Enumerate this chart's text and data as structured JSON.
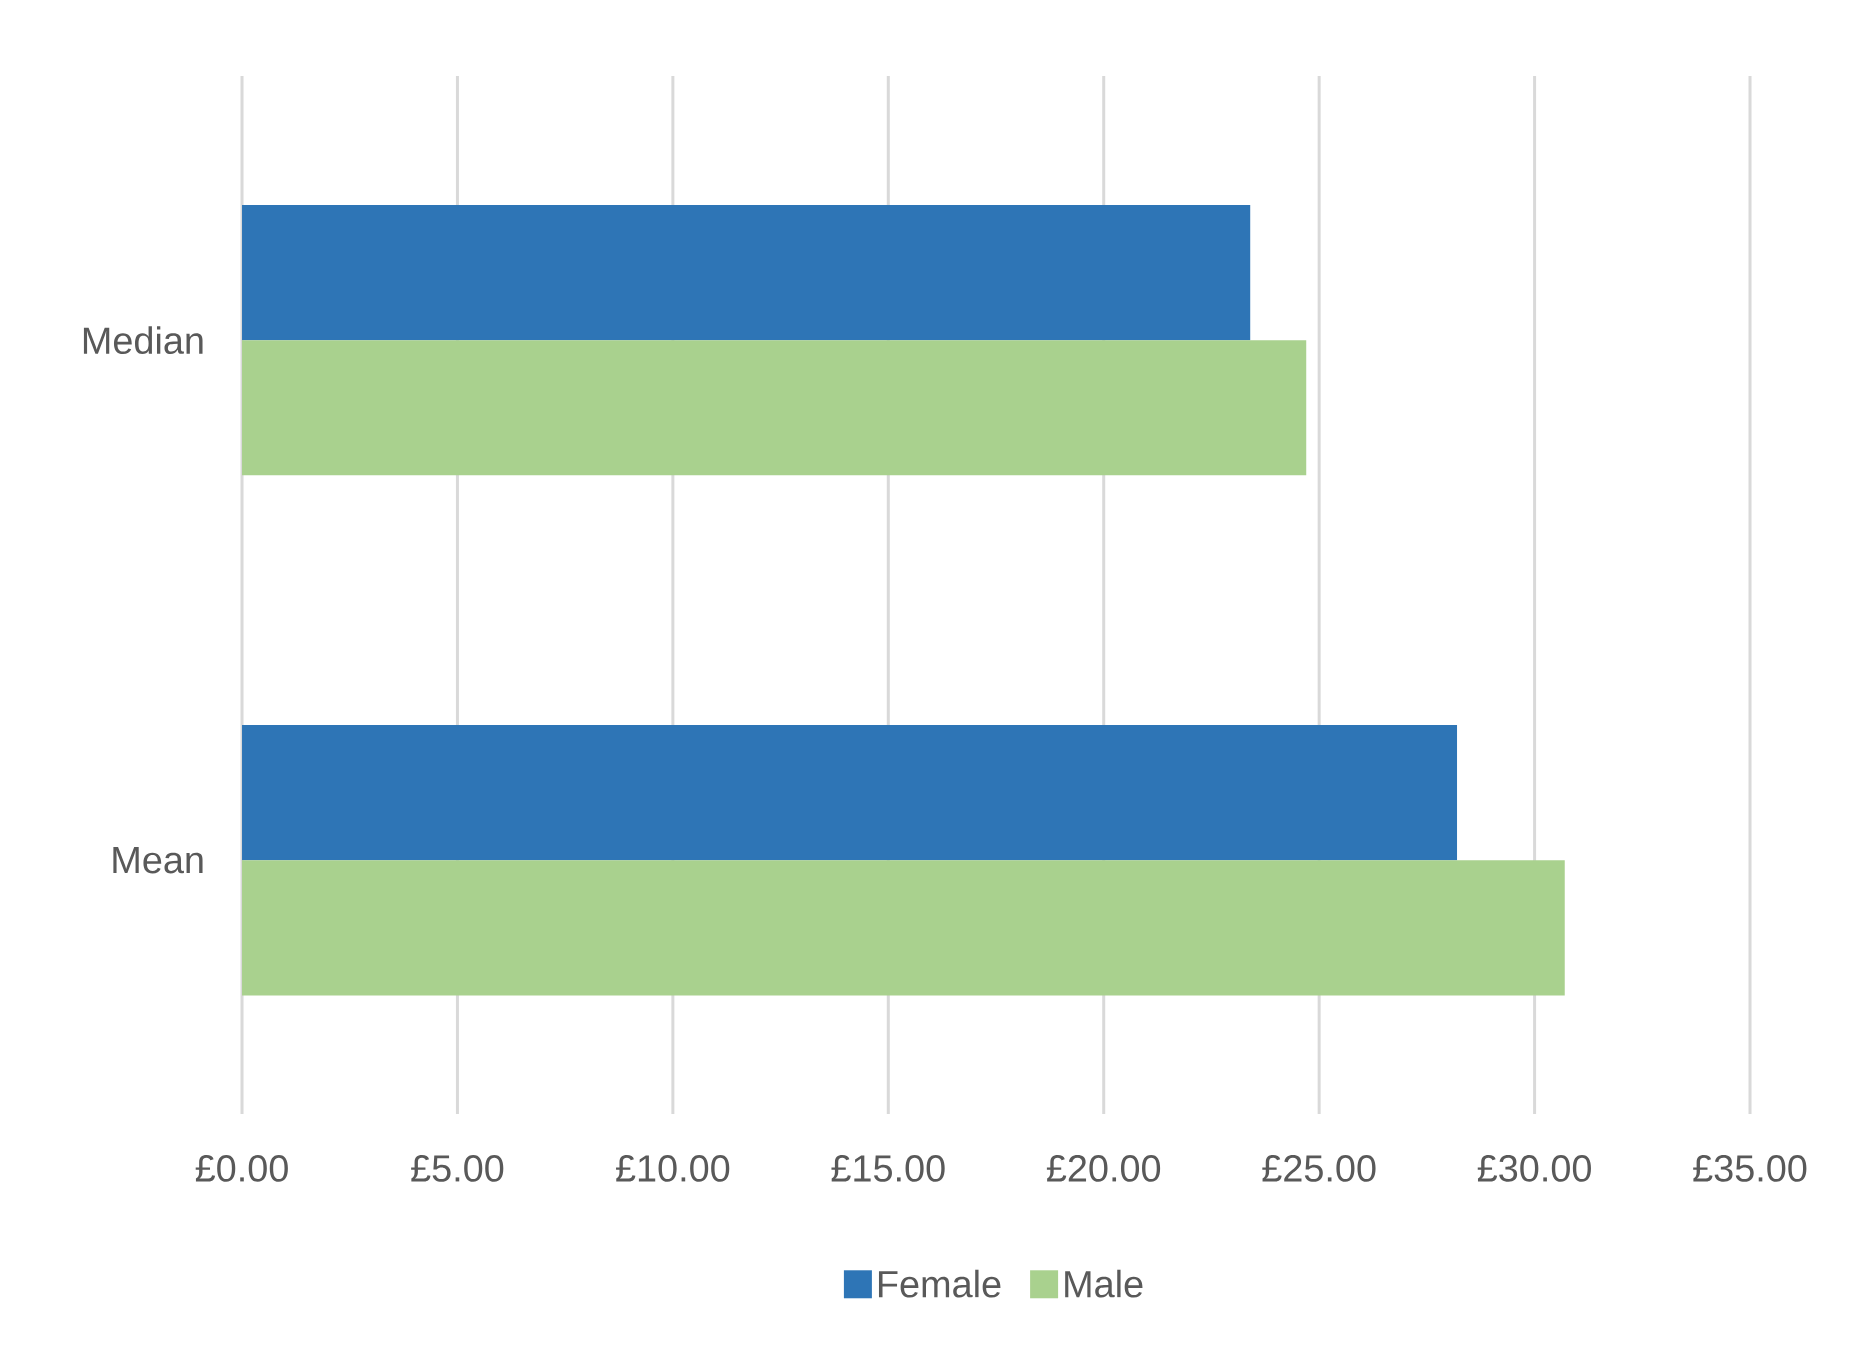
{
  "chart_data": {
    "type": "bar",
    "orientation": "horizontal",
    "categories": [
      "Median",
      "Mean"
    ],
    "series": [
      {
        "name": "Female",
        "color": "#2e75b6",
        "values": [
          23.4,
          28.2
        ]
      },
      {
        "name": "Male",
        "color": "#a9d18e",
        "values": [
          24.7,
          30.7
        ]
      }
    ],
    "xlim": [
      0,
      35
    ],
    "xticks": [
      {
        "value": 0,
        "label": "£0.00"
      },
      {
        "value": 5,
        "label": "£5.00"
      },
      {
        "value": 10,
        "label": "£10.00"
      },
      {
        "value": 15,
        "label": "£15.00"
      },
      {
        "value": 20,
        "label": "£20.00"
      },
      {
        "value": 25,
        "label": "£25.00"
      },
      {
        "value": 30,
        "label": "£30.00"
      },
      {
        "value": 35,
        "label": "£35.00"
      }
    ],
    "grid": "x",
    "legend": "bottom"
  }
}
